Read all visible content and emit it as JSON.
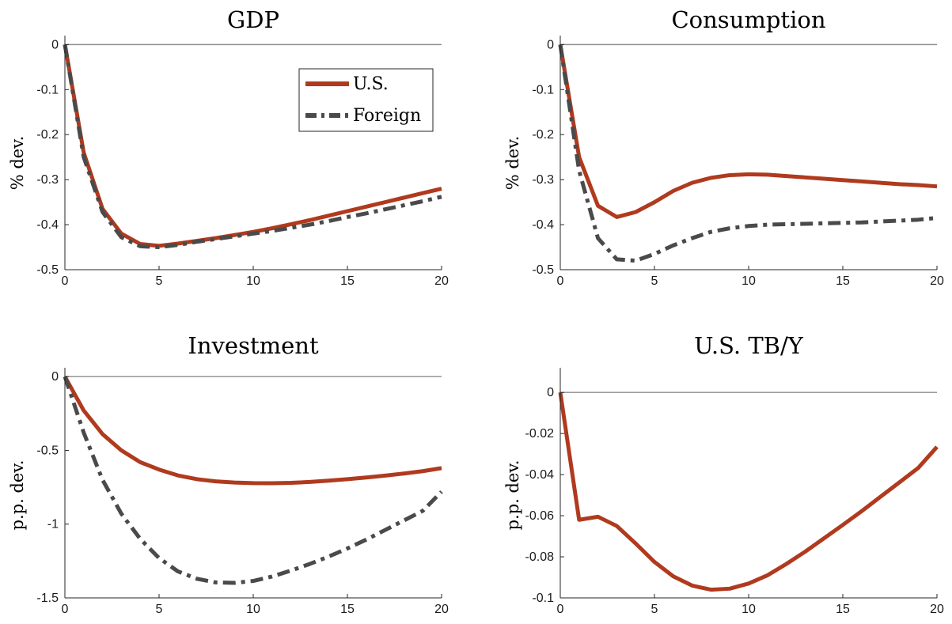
{
  "colors": {
    "us": "#b03a1e",
    "foreign": "#4a4a4a",
    "zero_line": "#8c8c8c"
  },
  "legend": {
    "us_label": "U.S.",
    "foreign_label": "Foreign"
  },
  "chart_data": [
    {
      "id": "gdp",
      "type": "line",
      "title": "GDP",
      "ylabel": "% dev.",
      "xlim": [
        0,
        20
      ],
      "ylim": [
        -0.5,
        0.02
      ],
      "xticks": [
        0,
        5,
        10,
        15,
        20
      ],
      "yticks": [
        0,
        -0.1,
        -0.2,
        -0.3,
        -0.4,
        -0.5
      ],
      "ytick_labels": [
        "0",
        "-0.1",
        "-0.2",
        "-0.3",
        "-0.4",
        "-0.5"
      ],
      "x": [
        0,
        1,
        2,
        3,
        4,
        5,
        6,
        7,
        8,
        9,
        10,
        11,
        12,
        13,
        14,
        15,
        16,
        17,
        18,
        19,
        20
      ],
      "series": [
        {
          "name": "U.S.",
          "style": "solid",
          "values": [
            0,
            -0.24,
            -0.365,
            -0.42,
            -0.443,
            -0.447,
            -0.442,
            -0.436,
            -0.43,
            -0.423,
            -0.416,
            -0.408,
            -0.399,
            -0.39,
            -0.38,
            -0.37,
            -0.36,
            -0.35,
            -0.34,
            -0.33,
            -0.32
          ]
        },
        {
          "name": "Foreign",
          "style": "dashdot",
          "values": [
            0,
            -0.25,
            -0.372,
            -0.428,
            -0.448,
            -0.45,
            -0.445,
            -0.438,
            -0.432,
            -0.426,
            -0.42,
            -0.414,
            -0.407,
            -0.4,
            -0.392,
            -0.383,
            -0.375,
            -0.366,
            -0.357,
            -0.348,
            -0.338
          ]
        }
      ]
    },
    {
      "id": "consumption",
      "type": "line",
      "title": "Consumption",
      "ylabel": "% dev.",
      "xlim": [
        0,
        20
      ],
      "ylim": [
        -0.5,
        0.02
      ],
      "xticks": [
        0,
        5,
        10,
        15,
        20
      ],
      "yticks": [
        0,
        -0.1,
        -0.2,
        -0.3,
        -0.4,
        -0.5
      ],
      "ytick_labels": [
        "0",
        "-0.1",
        "-0.2",
        "-0.3",
        "-0.4",
        "-0.5"
      ],
      "x": [
        0,
        1,
        2,
        3,
        4,
        5,
        6,
        7,
        8,
        9,
        10,
        11,
        12,
        13,
        14,
        15,
        16,
        17,
        18,
        19,
        20
      ],
      "series": [
        {
          "name": "U.S.",
          "style": "solid",
          "values": [
            0,
            -0.25,
            -0.358,
            -0.383,
            -0.372,
            -0.35,
            -0.325,
            -0.307,
            -0.296,
            -0.29,
            -0.288,
            -0.289,
            -0.292,
            -0.295,
            -0.298,
            -0.301,
            -0.304,
            -0.307,
            -0.31,
            -0.312,
            -0.315
          ]
        },
        {
          "name": "Foreign",
          "style": "dashdot",
          "values": [
            0,
            -0.28,
            -0.43,
            -0.477,
            -0.48,
            -0.465,
            -0.446,
            -0.43,
            -0.416,
            -0.408,
            -0.403,
            -0.4,
            -0.399,
            -0.398,
            -0.397,
            -0.396,
            -0.395,
            -0.393,
            -0.391,
            -0.389,
            -0.385
          ]
        }
      ]
    },
    {
      "id": "investment",
      "type": "line",
      "title": "Investment",
      "ylabel": "p.p. dev.",
      "xlim": [
        0,
        20
      ],
      "ylim": [
        -1.5,
        0.06
      ],
      "xticks": [
        0,
        5,
        10,
        15,
        20
      ],
      "yticks": [
        0,
        -0.5,
        -1,
        -1.5
      ],
      "ytick_labels": [
        "0",
        "-0.5",
        "-1",
        "-1.5"
      ],
      "x": [
        0,
        1,
        2,
        3,
        4,
        5,
        6,
        7,
        8,
        9,
        10,
        11,
        12,
        13,
        14,
        15,
        16,
        17,
        18,
        19,
        20
      ],
      "series": [
        {
          "name": "U.S.",
          "style": "solid",
          "values": [
            0,
            -0.23,
            -0.39,
            -0.5,
            -0.58,
            -0.63,
            -0.67,
            -0.695,
            -0.71,
            -0.718,
            -0.722,
            -0.723,
            -0.72,
            -0.714,
            -0.705,
            -0.695,
            -0.684,
            -0.671,
            -0.657,
            -0.641,
            -0.62
          ]
        },
        {
          "name": "Foreign",
          "style": "dashdot",
          "values": [
            0,
            -0.38,
            -0.7,
            -0.93,
            -1.1,
            -1.23,
            -1.32,
            -1.37,
            -1.395,
            -1.398,
            -1.385,
            -1.355,
            -1.315,
            -1.27,
            -1.22,
            -1.165,
            -1.105,
            -1.04,
            -0.975,
            -0.91,
            -0.78
          ]
        }
      ]
    },
    {
      "id": "tby",
      "type": "line",
      "title": "U.S. TB/Y",
      "ylabel": "p.p. dev.",
      "xlim": [
        0,
        20
      ],
      "ylim": [
        -0.1,
        0.012
      ],
      "xticks": [
        0,
        5,
        10,
        15,
        20
      ],
      "yticks": [
        0,
        -0.02,
        -0.04,
        -0.06,
        -0.08,
        -0.1
      ],
      "ytick_labels": [
        "0",
        "-0.02",
        "-0.04",
        "-0.06",
        "-0.08",
        "-0.1"
      ],
      "x": [
        0,
        1,
        2,
        3,
        4,
        5,
        6,
        7,
        8,
        9,
        10,
        11,
        12,
        13,
        14,
        15,
        16,
        17,
        18,
        19,
        20
      ],
      "series": [
        {
          "name": "U.S.",
          "style": "solid",
          "values": [
            0,
            -0.062,
            -0.0605,
            -0.065,
            -0.0735,
            -0.0825,
            -0.0895,
            -0.094,
            -0.096,
            -0.0955,
            -0.093,
            -0.089,
            -0.0835,
            -0.0775,
            -0.071,
            -0.0645,
            -0.0578,
            -0.0508,
            -0.0438,
            -0.0368,
            -0.0265
          ]
        }
      ]
    }
  ]
}
